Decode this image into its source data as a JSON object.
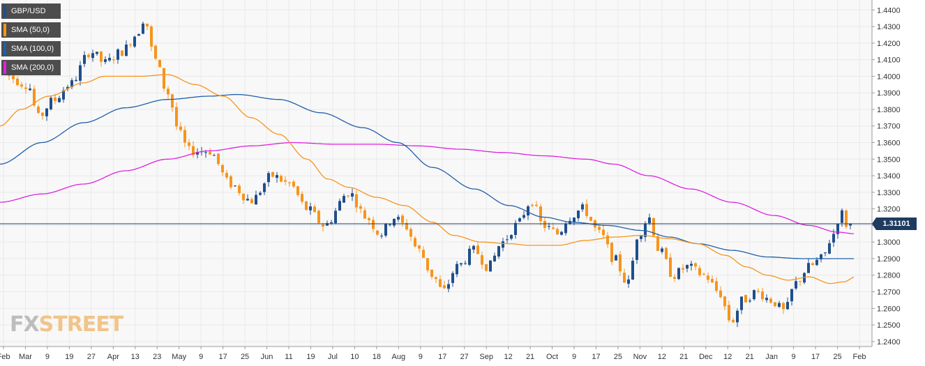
{
  "legend": [
    {
      "label": "GBP/USD",
      "color": "#1f4e8c"
    },
    {
      "label": "SMA (50,0)",
      "color": "#f7941d"
    },
    {
      "label": "SMA (100,0)",
      "color": "#1f5fa8"
    },
    {
      "label": "SMA (200,0)",
      "color": "#e020e0"
    }
  ],
  "watermark": {
    "fx": "FX",
    "street": "STREET"
  },
  "current_price": {
    "label": "1.31101",
    "value": 1.31101
  },
  "colors": {
    "bullish": "#1f4e8c",
    "bearish": "#f7941d",
    "sma50": "#f7941d",
    "sma100": "#1f5fa8",
    "sma200": "#e020e0",
    "grid": "#e9e9e9",
    "price_line": "#1f3b5e"
  },
  "chart_data": {
    "type": "candlestick",
    "symbol": "GBP/USD",
    "ylim": [
      1.237,
      1.446
    ],
    "y_ticks": [
      "1.2400",
      "1.2500",
      "1.2600",
      "1.2700",
      "1.2800",
      "1.2900",
      "1.3000",
      "1.3100",
      "1.3200",
      "1.3300",
      "1.3400",
      "1.3500",
      "1.3600",
      "1.3700",
      "1.3800",
      "1.3900",
      "1.4000",
      "1.4100",
      "1.4200",
      "1.4300",
      "1.4400"
    ],
    "x_ticks": [
      "Feb",
      "Mar",
      "9",
      "19",
      "27",
      "Apr",
      "13",
      "23",
      "May",
      "9",
      "17",
      "25",
      "Jun",
      "11",
      "19",
      "Jul",
      "10",
      "18",
      "Aug",
      "9",
      "17",
      "27",
      "Sep",
      "12",
      "21",
      "Oct",
      "9",
      "17",
      "25",
      "Nov",
      "12",
      "21",
      "Dec",
      "12",
      "21",
      "Jan",
      "9",
      "17",
      "25",
      "Feb"
    ],
    "grid": true,
    "legend_position": "top-left",
    "price_trend": [
      [
        0,
        1.402
      ],
      [
        40,
        1.395
      ],
      [
        55,
        1.375
      ],
      [
        75,
        1.385
      ],
      [
        100,
        1.395
      ],
      [
        130,
        1.415
      ],
      [
        150,
        1.408
      ],
      [
        175,
        1.415
      ],
      [
        195,
        1.425
      ],
      [
        207,
        1.435
      ],
      [
        222,
        1.41
      ],
      [
        240,
        1.39
      ],
      [
        258,
        1.365
      ],
      [
        270,
        1.355
      ],
      [
        300,
        1.355
      ],
      [
        330,
        1.335
      ],
      [
        360,
        1.325
      ],
      [
        390,
        1.34
      ],
      [
        415,
        1.335
      ],
      [
        440,
        1.32
      ],
      [
        465,
        1.31
      ],
      [
        500,
        1.33
      ],
      [
        525,
        1.315
      ],
      [
        545,
        1.305
      ],
      [
        565,
        1.315
      ],
      [
        580,
        1.31
      ],
      [
        600,
        1.295
      ],
      [
        620,
        1.28
      ],
      [
        635,
        1.27
      ],
      [
        655,
        1.285
      ],
      [
        680,
        1.295
      ],
      [
        700,
        1.285
      ],
      [
        720,
        1.3
      ],
      [
        740,
        1.31
      ],
      [
        762,
        1.325
      ],
      [
        778,
        1.31
      ],
      [
        800,
        1.305
      ],
      [
        815,
        1.315
      ],
      [
        835,
        1.32
      ],
      [
        860,
        1.305
      ],
      [
        880,
        1.29
      ],
      [
        900,
        1.275
      ],
      [
        915,
        1.305
      ],
      [
        930,
        1.315
      ],
      [
        945,
        1.295
      ],
      [
        965,
        1.28
      ],
      [
        985,
        1.285
      ],
      [
        1010,
        1.28
      ],
      [
        1030,
        1.27
      ],
      [
        1048,
        1.252
      ],
      [
        1065,
        1.265
      ],
      [
        1085,
        1.27
      ],
      [
        1105,
        1.265
      ],
      [
        1125,
        1.258
      ],
      [
        1140,
        1.275
      ],
      [
        1160,
        1.285
      ],
      [
        1178,
        1.29
      ],
      [
        1195,
        1.305
      ],
      [
        1205,
        1.318
      ],
      [
        1215,
        1.31
      ],
      [
        1226,
        1.311
      ]
    ],
    "sma50": [
      [
        0,
        1.37
      ],
      [
        30,
        1.38
      ],
      [
        70,
        1.388
      ],
      [
        120,
        1.396
      ],
      [
        150,
        1.4
      ],
      [
        200,
        1.4
      ],
      [
        240,
        1.401
      ],
      [
        280,
        1.395
      ],
      [
        320,
        1.388
      ],
      [
        360,
        1.375
      ],
      [
        400,
        1.365
      ],
      [
        440,
        1.35
      ],
      [
        470,
        1.338
      ],
      [
        500,
        1.333
      ],
      [
        540,
        1.327
      ],
      [
        580,
        1.322
      ],
      [
        620,
        1.312
      ],
      [
        650,
        1.304
      ],
      [
        690,
        1.3
      ],
      [
        730,
        1.299
      ],
      [
        760,
        1.298
      ],
      [
        800,
        1.298
      ],
      [
        840,
        1.301
      ],
      [
        880,
        1.303
      ],
      [
        920,
        1.304
      ],
      [
        960,
        1.302
      ],
      [
        1000,
        1.299
      ],
      [
        1040,
        1.292
      ],
      [
        1070,
        1.285
      ],
      [
        1100,
        1.28
      ],
      [
        1130,
        1.277
      ],
      [
        1160,
        1.279
      ],
      [
        1190,
        1.275
      ],
      [
        1210,
        1.276
      ],
      [
        1226,
        1.279
      ]
    ],
    "sma100": [
      [
        0,
        1.347
      ],
      [
        60,
        1.36
      ],
      [
        120,
        1.372
      ],
      [
        180,
        1.381
      ],
      [
        240,
        1.386
      ],
      [
        300,
        1.388
      ],
      [
        340,
        1.389
      ],
      [
        400,
        1.386
      ],
      [
        460,
        1.378
      ],
      [
        520,
        1.369
      ],
      [
        570,
        1.36
      ],
      [
        620,
        1.345
      ],
      [
        680,
        1.332
      ],
      [
        730,
        1.322
      ],
      [
        780,
        1.315
      ],
      [
        820,
        1.312
      ],
      [
        870,
        1.31
      ],
      [
        920,
        1.307
      ],
      [
        960,
        1.303
      ],
      [
        1000,
        1.299
      ],
      [
        1050,
        1.295
      ],
      [
        1100,
        1.291
      ],
      [
        1150,
        1.29
      ],
      [
        1200,
        1.29
      ],
      [
        1226,
        1.29
      ]
    ],
    "sma200": [
      [
        0,
        1.324
      ],
      [
        60,
        1.329
      ],
      [
        120,
        1.335
      ],
      [
        180,
        1.343
      ],
      [
        240,
        1.35
      ],
      [
        300,
        1.355
      ],
      [
        360,
        1.358
      ],
      [
        420,
        1.36
      ],
      [
        480,
        1.359
      ],
      [
        540,
        1.359
      ],
      [
        600,
        1.358
      ],
      [
        660,
        1.356
      ],
      [
        720,
        1.354
      ],
      [
        780,
        1.352
      ],
      [
        840,
        1.35
      ],
      [
        880,
        1.347
      ],
      [
        930,
        1.34
      ],
      [
        990,
        1.332
      ],
      [
        1050,
        1.324
      ],
      [
        1110,
        1.316
      ],
      [
        1160,
        1.31
      ],
      [
        1200,
        1.306
      ],
      [
        1226,
        1.305
      ]
    ]
  }
}
